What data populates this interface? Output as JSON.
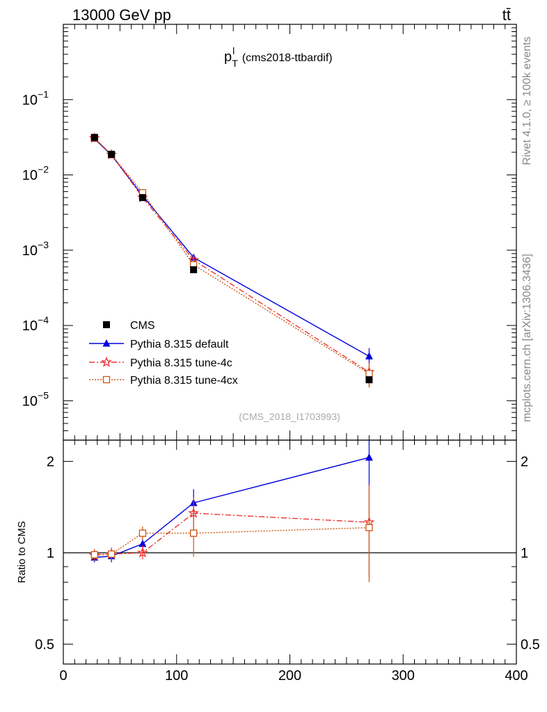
{
  "header": {
    "left": "13000 GeV pp",
    "right": "tt̄"
  },
  "side_labels": {
    "rivet": "Rivet 4.1.0, ≥ 100k events",
    "source": "mcplots.cern.ch [arXiv:1306.3436]"
  },
  "chart_data": [
    {
      "type": "line",
      "panel": "main",
      "title_main": "p",
      "title_sup": "l",
      "title_sub": "T",
      "title_suffix": "(cms2018-ttbardif)",
      "analysis_label": "(CMS_2018_I1703993)",
      "yscale": "log",
      "xlim": [
        0,
        400
      ],
      "ylim": [
        3e-06,
        1
      ],
      "y_ticks": [
        1e-05,
        0.0001,
        0.001,
        0.01,
        0.1
      ],
      "y_tick_labels": [
        {
          "base": "10",
          "exp": "−5"
        },
        {
          "base": "10",
          "exp": "−4"
        },
        {
          "base": "10",
          "exp": "−3"
        },
        {
          "base": "10",
          "exp": "−2"
        },
        {
          "base": "10",
          "exp": "−1"
        }
      ],
      "x": [
        27.5,
        42.5,
        70,
        115,
        270
      ],
      "legend_position": "bottom-left",
      "series": [
        {
          "name": "CMS",
          "color": "#000000",
          "marker": "filled-square",
          "line": "none",
          "values": [
            0.0315,
            0.0188,
            0.005,
            0.00055,
            1.9e-05
          ],
          "err_lo": [
            0.0315,
            0.0188,
            0.005,
            0.00055,
            1.9e-05
          ],
          "err_hi": [
            0.0315,
            0.0188,
            0.005,
            0.00055,
            1.9e-05
          ]
        },
        {
          "name": "Pythia 8.315 default",
          "color": "#0000dd",
          "marker": "triangle",
          "line": "solid",
          "values": [
            0.0303,
            0.0183,
            0.0053,
            0.0008,
            3.9e-05
          ],
          "err_lo": [
            0.0293,
            0.0177,
            0.0051,
            0.00072,
            3.1e-05
          ],
          "err_hi": [
            0.0313,
            0.0189,
            0.0055,
            0.00088,
            5e-05
          ]
        },
        {
          "name": "Pythia 8.315 tune-4c",
          "color": "#ee3333",
          "marker": "star",
          "line": "dashdot",
          "values": [
            0.0308,
            0.0186,
            0.005,
            0.00074,
            2.4e-05
          ],
          "err_lo": [
            0.0298,
            0.018,
            0.0048,
            0.00066,
            1.6e-05
          ],
          "err_hi": [
            0.0318,
            0.0192,
            0.0052,
            0.00082,
            3.2e-05
          ]
        },
        {
          "name": "Pythia 8.315 tune-4cx",
          "color": "#cc5511",
          "marker": "open-square",
          "line": "dotted",
          "values": [
            0.031,
            0.0186,
            0.0058,
            0.00064,
            2.3e-05
          ],
          "err_lo": [
            0.03,
            0.018,
            0.0056,
            0.00054,
            1.5e-05
          ],
          "err_hi": [
            0.032,
            0.0192,
            0.006,
            0.00074,
            3.1e-05
          ]
        }
      ]
    },
    {
      "type": "line",
      "panel": "ratio",
      "ylabel": "Ratio to CMS",
      "yscale": "log",
      "xlim": [
        0,
        400
      ],
      "ylim": [
        0.43,
        2.35
      ],
      "reference_line": 1,
      "x_ticks": [
        0,
        100,
        200,
        300,
        400
      ],
      "x_tick_labels": [
        "0",
        "100",
        "200",
        "300",
        "400"
      ],
      "y_ticks": [
        0.5,
        1,
        2
      ],
      "y_tick_labels": [
        "0.5",
        "1",
        "2"
      ],
      "x": [
        27.5,
        42.5,
        70,
        115,
        270
      ],
      "series": [
        {
          "name": "Pythia 8.315 default",
          "color": "#0000dd",
          "marker": "triangle",
          "line": "solid",
          "values": [
            0.965,
            0.975,
            1.07,
            1.46,
            2.06
          ],
          "err_lo": [
            0.93,
            0.93,
            1.02,
            1.3,
            1.65
          ],
          "err_hi": [
            1.0,
            1.02,
            1.12,
            1.62,
            2.4
          ]
        },
        {
          "name": "Pythia 8.315 tune-4c",
          "color": "#ee3333",
          "marker": "star",
          "line": "dashdot",
          "values": [
            0.98,
            0.99,
            1.0,
            1.35,
            1.26
          ],
          "err_lo": [
            0.94,
            0.95,
            0.95,
            1.2,
            0.84
          ],
          "err_hi": [
            1.02,
            1.04,
            1.06,
            1.52,
            1.68
          ]
        },
        {
          "name": "Pythia 8.315 tune-4cx",
          "color": "#cc5511",
          "marker": "open-square",
          "line": "dotted",
          "values": [
            0.985,
            0.99,
            1.16,
            1.16,
            1.21
          ],
          "err_lo": [
            0.94,
            0.95,
            1.1,
            0.97,
            0.8
          ],
          "err_hi": [
            1.03,
            1.04,
            1.22,
            1.38,
            1.62
          ]
        }
      ]
    }
  ]
}
